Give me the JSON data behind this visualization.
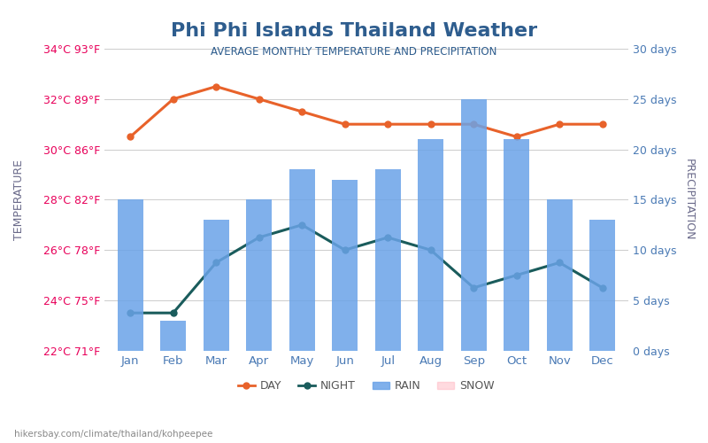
{
  "title": "Phi Phi Islands Thailand Weather",
  "subtitle": "AVERAGE MONTHLY TEMPERATURE AND PRECIPITATION",
  "months": [
    "Jan",
    "Feb",
    "Mar",
    "Apr",
    "May",
    "Jun",
    "Jul",
    "Aug",
    "Sep",
    "Oct",
    "Nov",
    "Dec"
  ],
  "day_temp": [
    30.5,
    32.0,
    32.5,
    32.0,
    31.5,
    31.0,
    31.0,
    31.0,
    31.0,
    30.5,
    31.0,
    31.0
  ],
  "night_temp": [
    23.5,
    23.5,
    25.5,
    26.5,
    27.0,
    26.0,
    26.5,
    26.0,
    24.5,
    25.0,
    25.5,
    24.5
  ],
  "rain_days": [
    15,
    3,
    13,
    15,
    18,
    17,
    18,
    21,
    25,
    21,
    15,
    13
  ],
  "temp_min": 22,
  "temp_max": 34,
  "precip_max": 30,
  "temp_ticks": [
    22,
    24,
    26,
    28,
    30,
    32,
    34
  ],
  "temp_tick_labels": [
    "22°C 71°F",
    "24°C 75°F",
    "26°C 78°F",
    "28°C 82°F",
    "30°C 86°F",
    "32°C 89°F",
    "34°C 93°F"
  ],
  "precip_ticks": [
    0,
    5,
    10,
    15,
    20,
    25,
    30
  ],
  "precip_tick_labels": [
    "0 days",
    "5 days",
    "10 days",
    "15 days",
    "20 days",
    "25 days",
    "30 days"
  ],
  "bar_color": "#6aa3e8",
  "day_line_color": "#e8622a",
  "night_line_color": "#1a5c5c",
  "title_color": "#2e5d8e",
  "subtitle_color": "#2e5d8e",
  "temp_label_color": "#e8005a",
  "precip_label_color": "#4a7ab5",
  "axis_label_color": "#6a6a8a",
  "month_label_color": "#4a7ab5",
  "footer_text": "hikersbay.com/climate/thailand/kohpeepee",
  "background_color": "#ffffff"
}
